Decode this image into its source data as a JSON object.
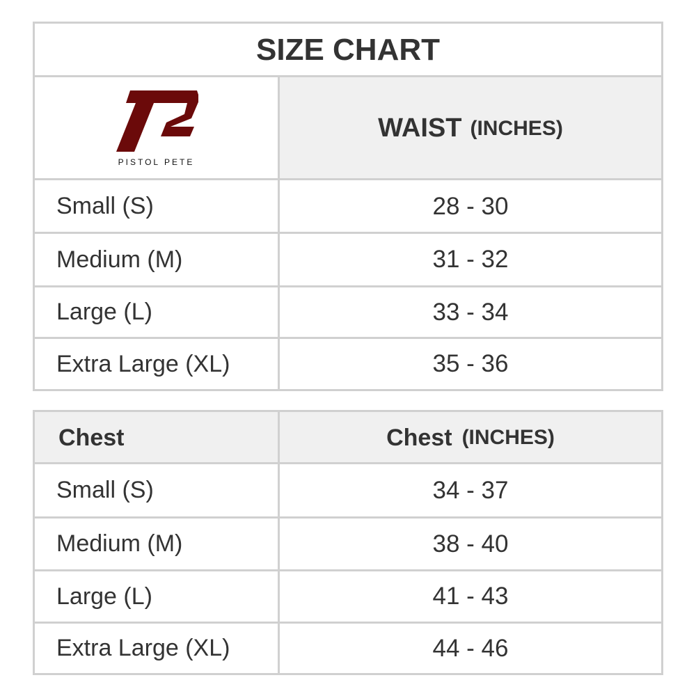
{
  "title": "SIZE CHART",
  "logo": {
    "text": "PISTOL PETE",
    "color": "#6b0a0a"
  },
  "waist_table": {
    "header": {
      "label": "WAIST",
      "unit": "(INCHES)"
    },
    "rows": [
      {
        "size": "Small (S)",
        "range": "28 - 30"
      },
      {
        "size": "Medium (M)",
        "range": "31 - 32"
      },
      {
        "size": "Large (L)",
        "range": "33 - 34"
      },
      {
        "size": "Extra Large (XL)",
        "range": "35 - 36"
      }
    ]
  },
  "chest_table": {
    "header": {
      "left": "Chest",
      "label": "Chest",
      "unit": "(INCHES)"
    },
    "rows": [
      {
        "size": "Small (S)",
        "range": "34 - 37"
      },
      {
        "size": "Medium (M)",
        "range": "38 - 40"
      },
      {
        "size": "Large (L)",
        "range": "41 - 43"
      },
      {
        "size": "Extra Large (XL)",
        "range": "44 - 46"
      }
    ]
  }
}
